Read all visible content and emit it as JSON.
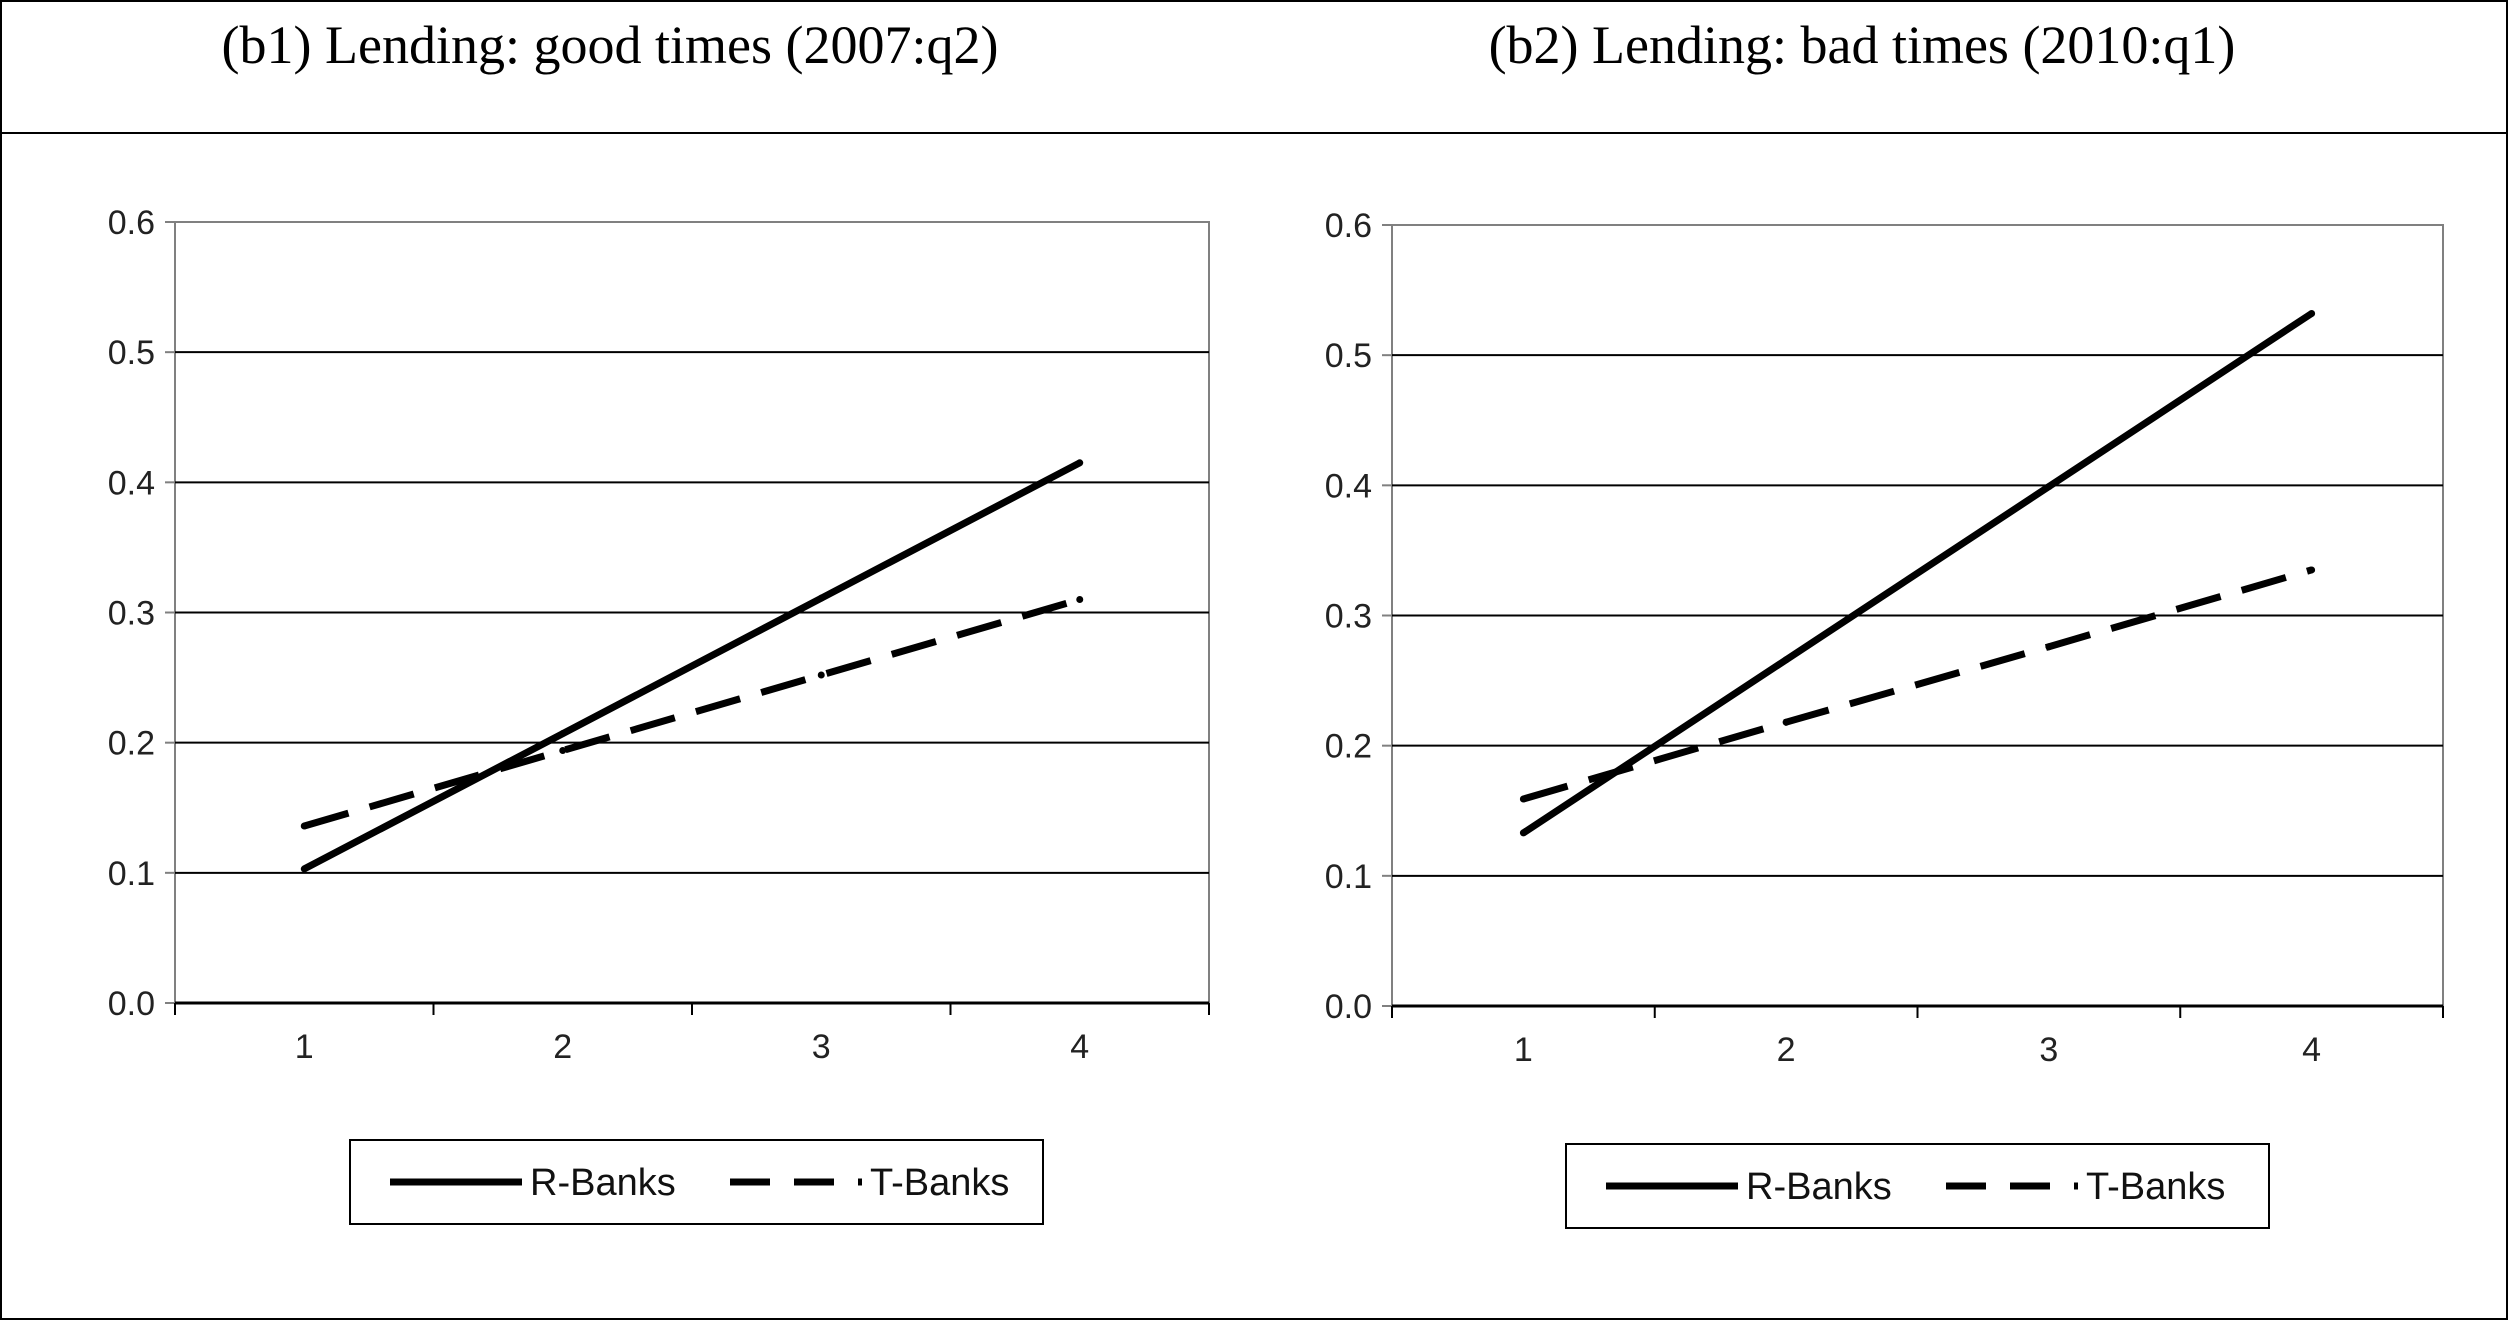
{
  "chart_data": [
    {
      "type": "line",
      "title": "(b1) Lending: good times (2007:q2)",
      "xlabel": "",
      "ylabel": "",
      "x": [
        1,
        2,
        3,
        4
      ],
      "x_tick_labels": [
        "1",
        "2",
        "3",
        "4"
      ],
      "ylim": [
        0.0,
        0.6
      ],
      "y_tick_labels": [
        "0.0",
        "0.1",
        "0.2",
        "0.3",
        "0.4",
        "0.5",
        "0.6"
      ],
      "grid": "horizontal",
      "legend_position": "bottom",
      "series": [
        {
          "name": "R-Banks",
          "style": "solid",
          "values": [
            0.103,
            0.207,
            0.311,
            0.415
          ]
        },
        {
          "name": "T-Banks",
          "style": "dashed",
          "values": [
            0.136,
            0.194,
            0.252,
            0.31
          ]
        }
      ]
    },
    {
      "type": "line",
      "title": "(b2) Lending: bad times (2010:q1)",
      "xlabel": "",
      "ylabel": "",
      "x": [
        1,
        2,
        3,
        4
      ],
      "x_tick_labels": [
        "1",
        "2",
        "3",
        "4"
      ],
      "ylim": [
        0.0,
        0.6
      ],
      "y_tick_labels": [
        "0.0",
        "0.1",
        "0.2",
        "0.3",
        "0.4",
        "0.5",
        "0.6"
      ],
      "grid": "horizontal",
      "legend_position": "bottom",
      "series": [
        {
          "name": "R-Banks",
          "style": "solid",
          "values": [
            0.133,
            0.266,
            0.399,
            0.532
          ]
        },
        {
          "name": "T-Banks",
          "style": "dashed",
          "values": [
            0.159,
            0.218,
            0.276,
            0.335
          ]
        }
      ]
    }
  ],
  "colors": {
    "line": "#000000",
    "grid": "#000000",
    "axis": "#808080"
  }
}
